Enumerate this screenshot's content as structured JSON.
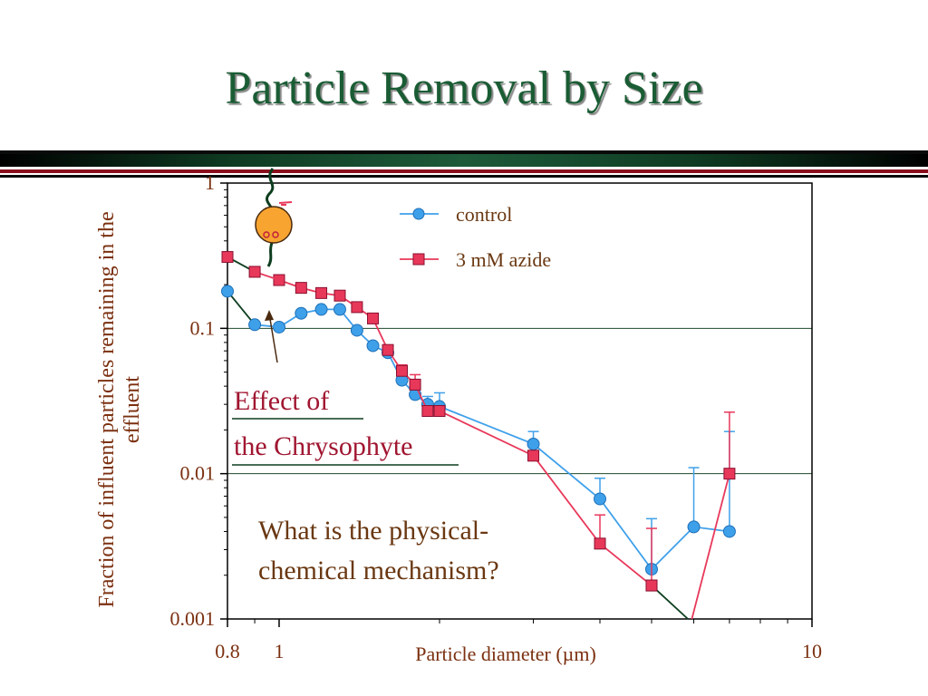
{
  "slide": {
    "title": "Particle Removal by Size",
    "annotation_line1": "Effect of",
    "annotation_line2": "the Chrysophyte",
    "question_line1": "What is the physical-",
    "question_line2": "chemical mechanism?"
  },
  "colors": {
    "title": "#1a5c34",
    "control": "#3fa0ea",
    "azide": "#e8385a",
    "dark_line": "#0d3d1f",
    "axis_text": "#7b3010",
    "annotation": "#a01530",
    "question": "#6a3812"
  },
  "chart_data": {
    "type": "line",
    "xscale": "log",
    "yscale": "log",
    "xlim": [
      0.8,
      10
    ],
    "ylim": [
      0.001,
      1
    ],
    "xlabel": "Particle diameter (µm)",
    "ylabel": "Fraction of influent particles remaining in the effluent",
    "xtick_labels": [
      "0.8",
      "1",
      "10"
    ],
    "xticks": [
      0.8,
      1,
      10
    ],
    "ytick_labels": [
      "1",
      "0.1",
      "0.01",
      "0.001"
    ],
    "yticks": [
      1,
      0.1,
      0.01,
      0.001
    ],
    "gridlines_y": [
      0.1,
      0.01
    ],
    "legend": "top-right",
    "series": [
      {
        "name": "control",
        "marker": "circle",
        "points": [
          {
            "x": 1.0,
            "y": 0.102
          },
          {
            "x": 1.1,
            "y": 0.127
          },
          {
            "x": 1.2,
            "y": 0.135
          },
          {
            "x": 1.3,
            "y": 0.135
          },
          {
            "x": 1.4,
            "y": 0.097
          },
          {
            "x": 1.5,
            "y": 0.076
          },
          {
            "x": 1.6,
            "y": 0.068
          },
          {
            "x": 1.7,
            "y": 0.044,
            "err": 0.0485
          },
          {
            "x": 1.8,
            "y": 0.035
          },
          {
            "x": 1.9,
            "y": 0.03,
            "err": 0.034
          },
          {
            "x": 2.0,
            "y": 0.029,
            "err": 0.036
          },
          {
            "x": 3.0,
            "y": 0.016,
            "err": 0.0195
          },
          {
            "x": 4.0,
            "y": 0.0067,
            "err": 0.0093
          },
          {
            "x": 5.0,
            "y": 0.0022,
            "err": 0.0049
          },
          {
            "x": 6.0,
            "y": 0.0043,
            "err": 0.011
          },
          {
            "x": 7.0,
            "y": 0.004,
            "err": 0.0195
          }
        ]
      },
      {
        "name": "3 mM azide",
        "marker": "square",
        "points": [
          {
            "x": 1.0,
            "y": 0.215
          },
          {
            "x": 1.1,
            "y": 0.19
          },
          {
            "x": 1.2,
            "y": 0.175
          },
          {
            "x": 1.3,
            "y": 0.168
          },
          {
            "x": 1.4,
            "y": 0.14
          },
          {
            "x": 1.5,
            "y": 0.117
          },
          {
            "x": 1.6,
            "y": 0.071
          },
          {
            "x": 1.7,
            "y": 0.051,
            "err": 0.056
          },
          {
            "x": 1.8,
            "y": 0.041,
            "err": 0.048
          },
          {
            "x": 1.9,
            "y": 0.027
          },
          {
            "x": 2.0,
            "y": 0.027
          },
          {
            "x": 3.0,
            "y": 0.0133
          },
          {
            "x": 4.0,
            "y": 0.0033,
            "err": 0.0052
          },
          {
            "x": 5.0,
            "y": 0.0017,
            "err": 0.0042
          },
          {
            "x": 6.0,
            "y": 0.00095
          },
          {
            "x": 7.0,
            "y": 0.01,
            "err": 0.0265
          }
        ]
      },
      {
        "name": "",
        "style": "dark-line",
        "links": [
          {
            "from": {
              "x": 0.8,
              "y": 0.18
            },
            "to": {
              "x": 0.9,
              "y": 0.106
            },
            "marker": "circle",
            "color": "control"
          },
          {
            "from": {
              "x": 0.8,
              "y": 0.31
            },
            "to": {
              "x": 0.9,
              "y": 0.245
            },
            "marker": "square",
            "color": "azide"
          },
          {
            "from": {
              "x": 5.0,
              "y": 0.0017
            },
            "to": {
              "x": 5.85,
              "y": 0.001
            },
            "marker": "none",
            "color": "azide"
          }
        ],
        "end_markers": [
          {
            "x": 0.8,
            "y": 0.18,
            "marker": "circle",
            "color": "control"
          },
          {
            "x": 0.9,
            "y": 0.106,
            "marker": "circle",
            "color": "control"
          },
          {
            "x": 0.8,
            "y": 0.31,
            "marker": "square",
            "color": "azide"
          },
          {
            "x": 0.9,
            "y": 0.245,
            "marker": "square",
            "color": "azide"
          }
        ]
      }
    ]
  },
  "icons": {
    "chrysophyte": "chrysophyte-organism-icon",
    "arrow": "annotation-arrow-icon"
  }
}
